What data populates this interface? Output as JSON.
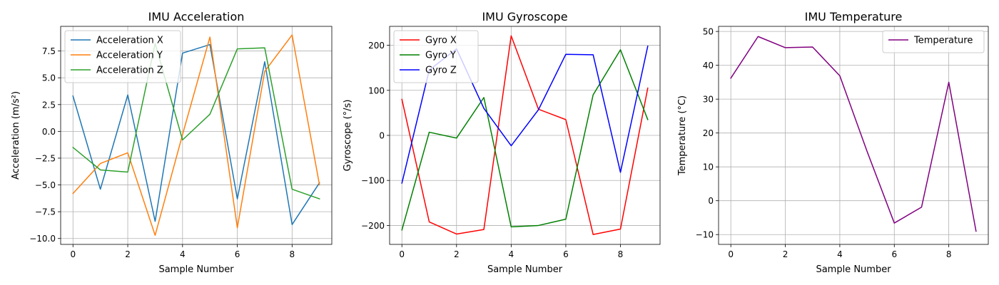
{
  "chart_data": [
    {
      "type": "line",
      "title": "IMU Acceleration",
      "xlabel": "Sample Number",
      "ylabel": "Acceleration (m/s²)",
      "xlim": [
        -0.45,
        9.45
      ],
      "ylim": [
        -10.55,
        9.8
      ],
      "xticks": [
        0,
        2,
        4,
        6,
        8
      ],
      "yticks": [
        -10.0,
        -7.5,
        -5.0,
        -2.5,
        0.0,
        2.5,
        5.0,
        7.5
      ],
      "ytick_labels": [
        "−10.0",
        "−7.5",
        "−5.0",
        "−2.5",
        "0.0",
        "2.5",
        "5.0",
        "7.5"
      ],
      "grid": true,
      "legend": "upper-left",
      "x": [
        0,
        1,
        2,
        3,
        4,
        5,
        6,
        7,
        8,
        9
      ],
      "series": [
        {
          "name": "Acceleration X",
          "color": "#1f77b4",
          "values": [
            3.3,
            -5.4,
            3.4,
            -8.4,
            7.3,
            8.1,
            -6.3,
            6.5,
            -8.7,
            -4.8
          ]
        },
        {
          "name": "Acceleration Y",
          "color": "#ff7f0e",
          "values": [
            -5.8,
            -3.0,
            -2.0,
            -9.7,
            -0.3,
            8.8,
            -9.0,
            5.6,
            9.0,
            -5.0
          ]
        },
        {
          "name": "Acceleration Z",
          "color": "#2ca02c",
          "values": [
            -1.5,
            -3.6,
            -3.8,
            8.2,
            -0.8,
            1.6,
            7.7,
            7.8,
            -5.4,
            -6.3
          ]
        }
      ]
    },
    {
      "type": "line",
      "title": "IMU Gyroscope",
      "xlabel": "Sample Number",
      "ylabel": "Gyroscope (°/s)",
      "xlim": [
        -0.45,
        9.45
      ],
      "ylim": [
        -242,
        242
      ],
      "xticks": [
        0,
        2,
        4,
        6,
        8
      ],
      "yticks": [
        -200,
        -100,
        0,
        100,
        200
      ],
      "ytick_labels": [
        "−200",
        "−100",
        "0",
        "100",
        "200"
      ],
      "grid": true,
      "legend": "upper-left",
      "x": [
        0,
        1,
        2,
        3,
        4,
        5,
        6,
        7,
        8,
        9
      ],
      "series": [
        {
          "name": "Gyro X",
          "color": "#ff0000",
          "values": [
            80,
            -192,
            -219,
            -209,
            221,
            58,
            35,
            -220,
            -208,
            105
          ]
        },
        {
          "name": "Gyro Y",
          "color": "#008000",
          "values": [
            -210,
            7,
            -6,
            84,
            -203,
            -200,
            -186,
            90,
            190,
            35
          ]
        },
        {
          "name": "Gyro Z",
          "color": "#0000ff",
          "values": [
            -106,
            145,
            192,
            60,
            -23,
            57,
            180,
            179,
            -82,
            198
          ]
        }
      ]
    },
    {
      "type": "line",
      "title": "IMU Temperature",
      "xlabel": "Sample Number",
      "ylabel": "Temperature (°C)",
      "xlim": [
        -0.45,
        9.45
      ],
      "ylim": [
        -12.9,
        51.5
      ],
      "xticks": [
        0,
        2,
        4,
        6,
        8
      ],
      "yticks": [
        -10,
        0,
        10,
        20,
        30,
        40,
        50
      ],
      "ytick_labels": [
        "−10",
        "0",
        "10",
        "20",
        "30",
        "40",
        "50"
      ],
      "grid": true,
      "legend": "upper-right",
      "x": [
        0,
        1,
        2,
        3,
        4,
        5,
        6,
        7,
        8,
        9
      ],
      "series": [
        {
          "name": "Temperature",
          "color": "#800080",
          "values": [
            36.2,
            48.5,
            45.2,
            45.4,
            36.9,
            14.6,
            -6.6,
            -1.9,
            35.0,
            -9.0
          ]
        }
      ]
    }
  ]
}
